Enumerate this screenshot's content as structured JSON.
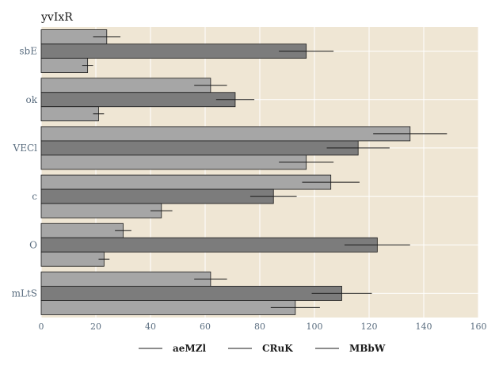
{
  "chart_data": {
    "type": "bar",
    "orientation": "horizontal",
    "title": "yvIxR",
    "xlabel": "",
    "ylabel": "",
    "categories": [
      "sbE",
      "ok",
      "VECl",
      "c",
      "O",
      "mLtS"
    ],
    "series": [
      {
        "name": "aeMZl",
        "color": "#a6a6a6",
        "values": [
          24,
          62,
          135,
          106,
          30,
          62
        ],
        "errors": [
          5,
          6,
          13.5,
          10.5,
          3,
          6
        ]
      },
      {
        "name": "CRuK",
        "color": "#7c7c7c",
        "values": [
          97,
          71,
          116,
          85,
          123,
          110
        ],
        "errors": [
          10,
          7,
          11.5,
          8.5,
          12,
          11
        ]
      },
      {
        "name": "MBbW",
        "color": "#a6a6a6",
        "values": [
          17,
          21,
          97,
          44,
          23,
          93
        ],
        "errors": [
          2,
          2,
          10,
          4,
          2,
          9
        ]
      }
    ],
    "xlim": [
      0,
      160
    ],
    "xticks": [
      0,
      20,
      40,
      60,
      80,
      100,
      120,
      140,
      160
    ],
    "grid": true,
    "legend_position": "bottom",
    "background": "#efe6d4"
  }
}
